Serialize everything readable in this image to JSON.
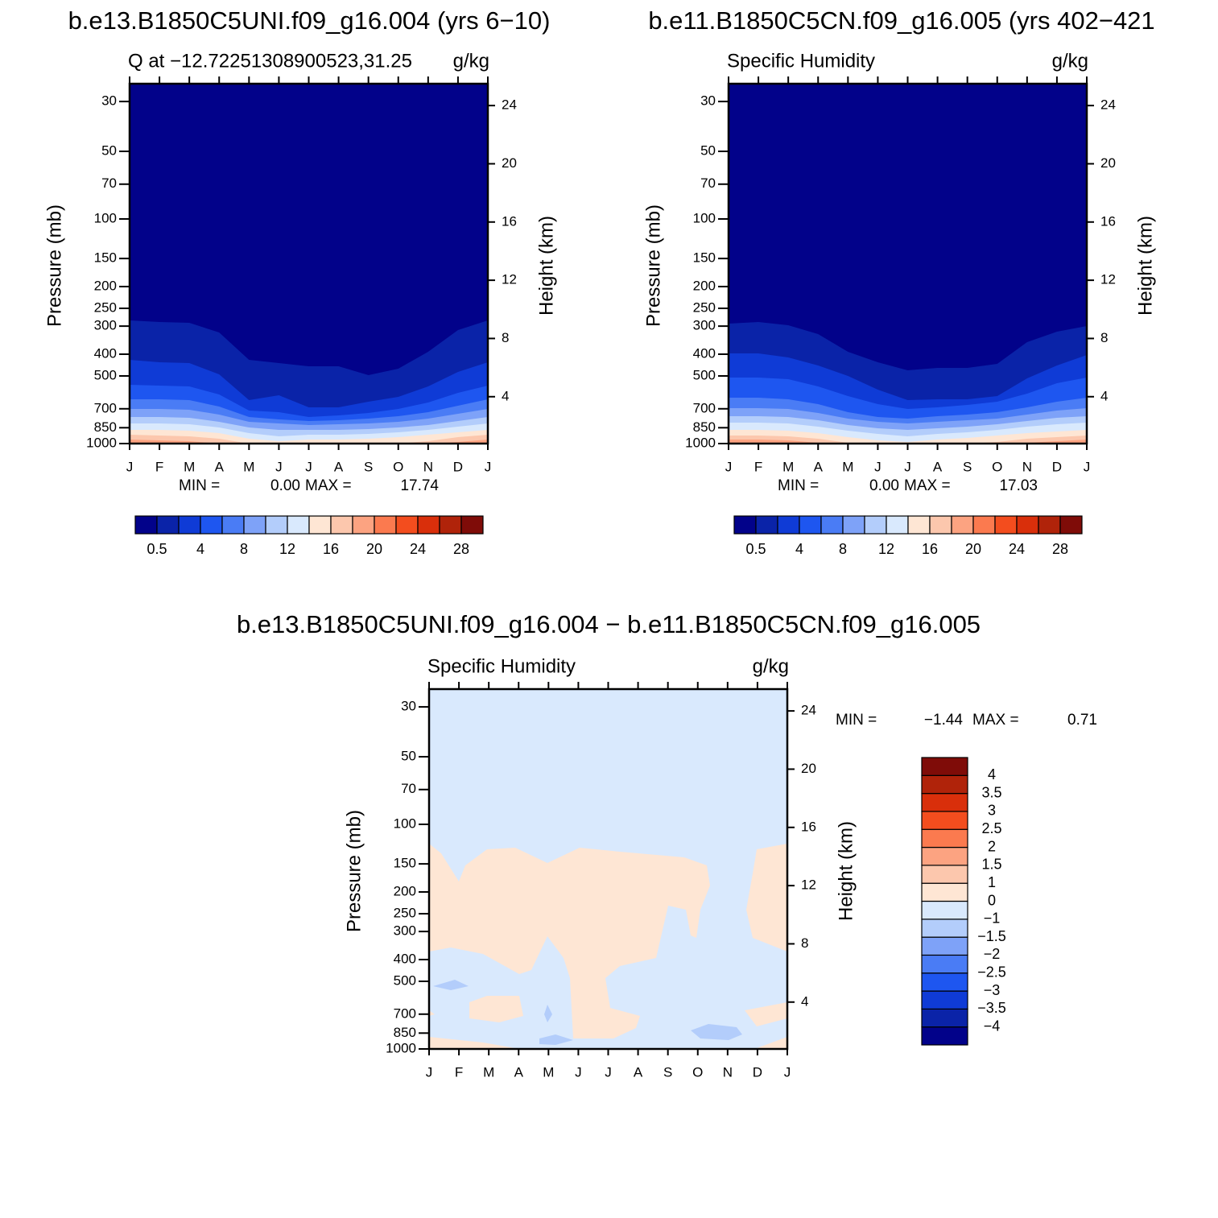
{
  "chart_data": [
    {
      "type": "contour",
      "title": "b.e13.B1850C5UNI.f09_g16.004 (yrs 6−10)",
      "subtitle_left": "Q at −12.72251308900523,31.25",
      "subtitle_right": "g/kg",
      "categories": [
        "J",
        "F",
        "M",
        "A",
        "M",
        "J",
        "J",
        "A",
        "S",
        "O",
        "N",
        "D",
        "J"
      ],
      "ylim": [
        1000,
        25
      ],
      "ylog": true,
      "yticks": [
        30,
        50,
        70,
        100,
        150,
        200,
        250,
        300,
        400,
        500,
        700,
        850,
        1000
      ],
      "y_label": "Pressure (mb)",
      "y2lim": [
        0.78,
        25.5
      ],
      "y2ticks": [
        4,
        8,
        12,
        16,
        20,
        24
      ],
      "y2_label": "Height (km)",
      "min_text": "MIN =",
      "min": {
        "value": 0,
        "label": "0.00"
      },
      "max_text": "MAX =",
      "max": 17.74,
      "colorbar": {
        "orientation": "horizontal",
        "colors": [
          "#02028a",
          "#0a23a8",
          "#0f3bd6",
          "#1e56f0",
          "#4a7cf5",
          "#7ea2f8",
          "#b3cdfb",
          "#d9e9fd",
          "#fee6d4",
          "#fcc7ad",
          "#fca381",
          "#fb7a4f",
          "#f34d1e",
          "#d92f0b",
          "#b0230a",
          "#7f0c08"
        ],
        "levels": [
          0.5,
          null,
          4,
          null,
          8,
          null,
          12,
          null,
          16,
          null,
          20,
          null,
          24,
          null,
          28
        ]
      }
    },
    {
      "type": "contour",
      "title": "b.e11.B1850C5CN.f09_g16.005 (yrs 402−421",
      "subtitle_left": "Specific Humidity",
      "subtitle_right": "g/kg",
      "categories": [
        "J",
        "F",
        "M",
        "A",
        "M",
        "J",
        "J",
        "A",
        "S",
        "O",
        "N",
        "D",
        "J"
      ],
      "ylim": [
        1000,
        25
      ],
      "ylog": true,
      "yticks": [
        30,
        50,
        70,
        100,
        150,
        200,
        250,
        300,
        400,
        500,
        700,
        850,
        1000
      ],
      "y_label": "Pressure (mb)",
      "y2lim": [
        0.78,
        25.5
      ],
      "y2ticks": [
        4,
        8,
        12,
        16,
        20,
        24
      ],
      "y2_label": "Height (km)",
      "min_text": "MIN =",
      "min": {
        "value": 0,
        "label": "0.00"
      },
      "max_text": "MAX =",
      "max": 17.03,
      "colorbar": {
        "orientation": "horizontal",
        "colors": [
          "#02028a",
          "#0a23a8",
          "#0f3bd6",
          "#1e56f0",
          "#4a7cf5",
          "#7ea2f8",
          "#b3cdfb",
          "#d9e9fd",
          "#fee6d4",
          "#fcc7ad",
          "#fca381",
          "#fb7a4f",
          "#f34d1e",
          "#d92f0b",
          "#b0230a",
          "#7f0c08"
        ],
        "levels": [
          0.5,
          null,
          4,
          null,
          8,
          null,
          12,
          null,
          16,
          null,
          20,
          null,
          24,
          null,
          28
        ]
      }
    },
    {
      "type": "contour",
      "title": "b.e13.B1850C5UNI.f09_g16.004 − b.e11.B1850C5CN.f09_g16.005",
      "subtitle_left": "Specific Humidity",
      "subtitle_right": "g/kg",
      "categories": [
        "J",
        "F",
        "M",
        "A",
        "M",
        "J",
        "J",
        "A",
        "S",
        "O",
        "N",
        "D",
        "J"
      ],
      "ylim": [
        1000,
        25
      ],
      "ylog": true,
      "yticks": [
        30,
        50,
        70,
        100,
        150,
        200,
        250,
        300,
        400,
        500,
        700,
        850,
        1000
      ],
      "y_label": "Pressure (mb)",
      "y2lim": [
        0.78,
        25.5
      ],
      "y2ticks": [
        4,
        8,
        12,
        16,
        20,
        24
      ],
      "y2_label": "Height (km)",
      "min_text": "MIN =",
      "min": {
        "value": -1.44,
        "label": "−1.44"
      },
      "max_text": "MAX =",
      "max": 0.71,
      "colorbar": {
        "orientation": "vertical",
        "colors": [
          "#02028a",
          "#0a23a8",
          "#0f3bd6",
          "#1e56f0",
          "#4a7cf5",
          "#7ea2f8",
          "#b3cdfb",
          "#d9e9fd",
          "#fee6d4",
          "#fcc7ad",
          "#fca381",
          "#fb7a4f",
          "#f34d1e",
          "#d92f0b",
          "#b0230a",
          "#7f0c08"
        ],
        "levels": [
          {
            "value": -4,
            "label": "−4"
          },
          {
            "value": -3.5,
            "label": "−3.5"
          },
          {
            "value": -3,
            "label": "−3"
          },
          {
            "value": -2.5,
            "label": "−2.5"
          },
          {
            "value": -2,
            "label": "−2"
          },
          {
            "value": -1.5,
            "label": "−1.5"
          },
          {
            "value": -1,
            "label": "−1"
          },
          0,
          1,
          1.5,
          2,
          2.5,
          3,
          3.5,
          4
        ]
      }
    }
  ]
}
